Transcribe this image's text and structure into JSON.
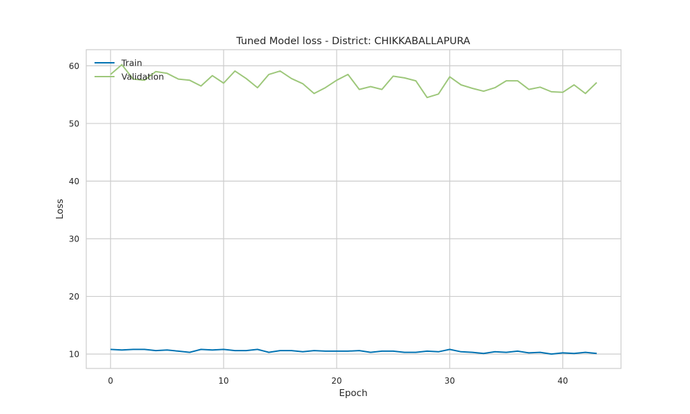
{
  "chart_data": {
    "type": "line",
    "title": "Tuned Model loss - District: CHIKKABALLAPURA",
    "xlabel": "Epoch",
    "ylabel": "Loss",
    "xlim": [
      -2.15,
      45.15
    ],
    "ylim": [
      7.5,
      62.8
    ],
    "xticks": [
      0,
      10,
      20,
      30,
      40
    ],
    "yticks": [
      10,
      20,
      30,
      40,
      50,
      60
    ],
    "grid": true,
    "legend_position": "top-left",
    "x": [
      0,
      1,
      2,
      3,
      4,
      5,
      6,
      7,
      8,
      9,
      10,
      11,
      12,
      13,
      14,
      15,
      16,
      17,
      18,
      19,
      20,
      21,
      22,
      23,
      24,
      25,
      26,
      27,
      28,
      29,
      30,
      31,
      32,
      33,
      34,
      35,
      36,
      37,
      38,
      39,
      40,
      41,
      42,
      43
    ],
    "series": [
      {
        "name": "Train",
        "color": "#0072b2",
        "values": [
          10.8,
          10.7,
          10.8,
          10.8,
          10.6,
          10.7,
          10.5,
          10.3,
          10.8,
          10.7,
          10.8,
          10.6,
          10.6,
          10.8,
          10.3,
          10.6,
          10.6,
          10.4,
          10.6,
          10.5,
          10.5,
          10.5,
          10.6,
          10.3,
          10.5,
          10.5,
          10.3,
          10.3,
          10.5,
          10.4,
          10.8,
          10.4,
          10.3,
          10.1,
          10.4,
          10.3,
          10.5,
          10.2,
          10.3,
          10.0,
          10.2,
          10.1,
          10.3,
          10.1
        ]
      },
      {
        "name": "Validation",
        "color": "#9dc77a",
        "values": [
          58.5,
          60.2,
          57.7,
          57.5,
          59.0,
          58.7,
          57.7,
          57.5,
          56.5,
          58.3,
          57.0,
          59.1,
          57.8,
          56.2,
          58.5,
          59.1,
          57.8,
          56.9,
          55.2,
          56.2,
          57.5,
          58.5,
          55.9,
          56.4,
          55.9,
          58.2,
          57.9,
          57.4,
          54.5,
          55.1,
          58.1,
          56.7,
          56.1,
          55.6,
          56.2,
          57.4,
          57.4,
          55.9,
          56.3,
          55.5,
          55.4,
          56.7,
          55.2,
          57.1
        ]
      }
    ]
  }
}
